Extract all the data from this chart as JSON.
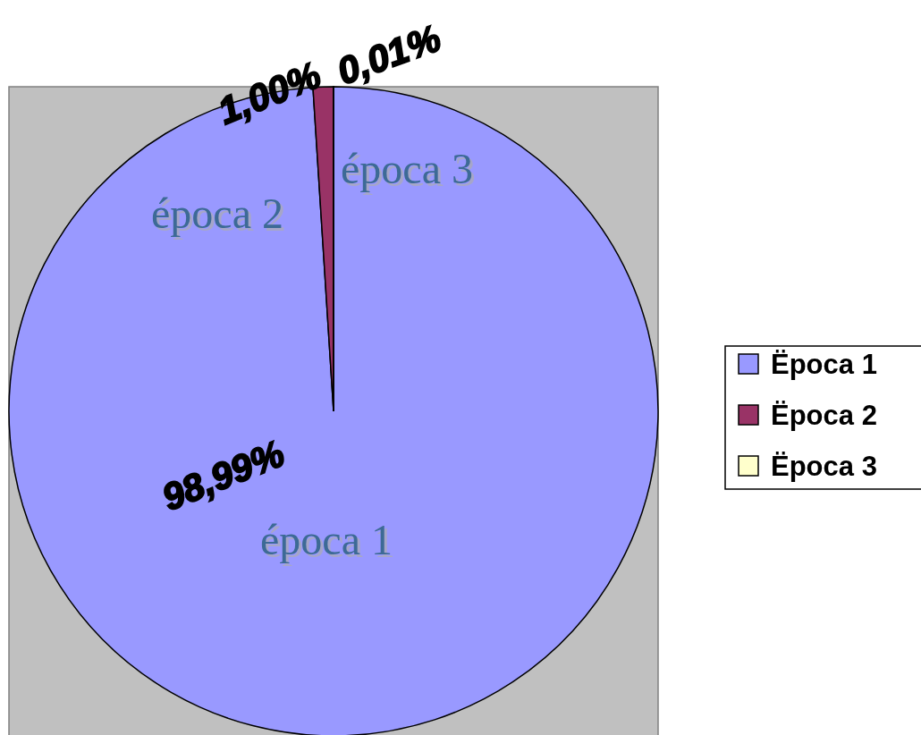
{
  "chart_data": {
    "type": "pie",
    "categories": [
      "Ëpoca 1",
      "Ëpoca 2",
      "Ëpoca 3"
    ],
    "values": [
      98.99,
      1.0,
      0.01
    ],
    "colors": [
      "#9999ff",
      "#993366",
      "#ffffcc"
    ],
    "value_labels": [
      "98,99%",
      "1,00%",
      "0,01%"
    ],
    "annotations": [
      "época 1",
      "época 2",
      "época 3"
    ],
    "legend": "right"
  }
}
